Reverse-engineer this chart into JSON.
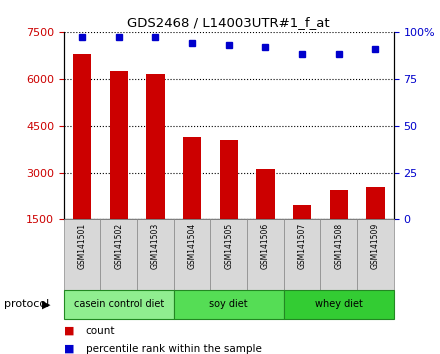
{
  "title": "GDS2468 / L14003UTR#1_f_at",
  "samples": [
    "GSM141501",
    "GSM141502",
    "GSM141503",
    "GSM141504",
    "GSM141505",
    "GSM141506",
    "GSM141507",
    "GSM141508",
    "GSM141509"
  ],
  "counts": [
    6800,
    6250,
    6150,
    4150,
    4050,
    3100,
    1950,
    2450,
    2550
  ],
  "percentile_ranks": [
    97,
    97,
    97,
    94,
    93,
    92,
    88,
    88,
    91
  ],
  "ylim_left": [
    1500,
    7500
  ],
  "ylim_right": [
    0,
    100
  ],
  "yticks_left": [
    1500,
    3000,
    4500,
    6000,
    7500
  ],
  "yticks_right": [
    0,
    25,
    50,
    75,
    100
  ],
  "bar_color": "#cc0000",
  "dot_color": "#0000cc",
  "groups": [
    {
      "label": "casein control diet",
      "start": 0,
      "end": 3,
      "color": "#90ee90"
    },
    {
      "label": "soy diet",
      "start": 3,
      "end": 6,
      "color": "#55dd55"
    },
    {
      "label": "whey diet",
      "start": 6,
      "end": 9,
      "color": "#33cc33"
    }
  ],
  "protocol_label": "protocol",
  "legend_count_label": "count",
  "legend_percentile_label": "percentile rank within the sample",
  "ylabel_left_color": "#cc0000",
  "ylabel_right_color": "#0000cc",
  "tick_bg_color": "#d8d8d8"
}
